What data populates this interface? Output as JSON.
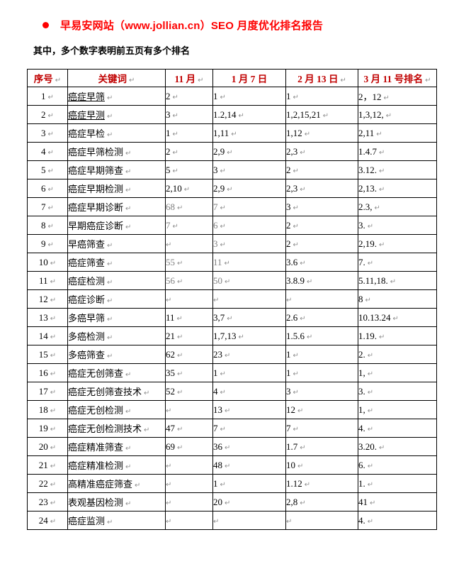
{
  "title": {
    "bullet_icon": "bullet",
    "text": "早易安网站（www.jollian.cn）SEO 月度优化排名报告"
  },
  "subtitle": "其中，多个数字表明前五页有多个排名",
  "paragraph_mark": "↵",
  "colors": {
    "title_red": "#fe0000",
    "header_red": "#c00000",
    "text_black": "#000000",
    "gray_value": "#808080",
    "mark_gray": "#8f8f8f",
    "border": "#000000",
    "background": "#ffffff"
  },
  "table": {
    "headers": [
      {
        "label": "序号",
        "mark": true
      },
      {
        "label": "关键词",
        "mark": true
      },
      {
        "label": "11 月",
        "mark": true
      },
      {
        "label": "1 月 7 日",
        "mark": false
      },
      {
        "label": "2 月 13 日",
        "mark": true
      },
      {
        "label": "3 月 11 号排名",
        "mark": true
      }
    ],
    "rows": [
      {
        "no": "1",
        "keyword": "癌症早筛",
        "underline": true,
        "values": [
          "2",
          "1",
          "1",
          "2，12"
        ],
        "gray": [
          false,
          false,
          false,
          false
        ]
      },
      {
        "no": "2",
        "keyword": "癌症早测",
        "underline": true,
        "values": [
          "3",
          "1.2,14",
          "1,2,15,21",
          "1,3,12,"
        ],
        "gray": [
          false,
          false,
          false,
          false
        ]
      },
      {
        "no": "3",
        "keyword": "癌症早检",
        "underline": false,
        "values": [
          "1",
          "1,11",
          "1,12",
          "2,11"
        ],
        "gray": [
          false,
          false,
          false,
          false
        ]
      },
      {
        "no": "4",
        "keyword": "癌症早筛检测",
        "underline": false,
        "values": [
          "2",
          "2,9",
          "2,3",
          "1.4.7"
        ],
        "gray": [
          false,
          false,
          false,
          false
        ]
      },
      {
        "no": "5",
        "keyword": "癌症早期筛查",
        "underline": false,
        "values": [
          "5",
          "3",
          "2",
          "3.12."
        ],
        "gray": [
          false,
          false,
          false,
          false
        ]
      },
      {
        "no": "6",
        "keyword": "癌症早期检测",
        "underline": false,
        "values": [
          "2,10",
          "2,9",
          "2,3",
          "2,13."
        ],
        "gray": [
          false,
          false,
          false,
          false
        ]
      },
      {
        "no": "7",
        "keyword": "癌症早期诊断",
        "underline": false,
        "values": [
          "68",
          "7",
          "3",
          "2.3,"
        ],
        "gray": [
          true,
          true,
          false,
          false
        ]
      },
      {
        "no": "8",
        "keyword": "早期癌症诊断",
        "underline": false,
        "values": [
          "7",
          "6",
          "2",
          "3."
        ],
        "gray": [
          true,
          true,
          false,
          false
        ]
      },
      {
        "no": "9",
        "keyword": "早癌筛查",
        "underline": false,
        "values": [
          "",
          "3",
          "2",
          "2,19."
        ],
        "gray": [
          false,
          true,
          false,
          false
        ]
      },
      {
        "no": "10",
        "keyword": "癌症筛查",
        "underline": false,
        "values": [
          "55",
          "11",
          "3.6",
          "7."
        ],
        "gray": [
          true,
          true,
          false,
          false
        ]
      },
      {
        "no": "11",
        "keyword": "癌症检测",
        "underline": false,
        "values": [
          "56",
          "50",
          "3.8.9",
          "5.11,18."
        ],
        "gray": [
          true,
          true,
          false,
          false
        ]
      },
      {
        "no": "12",
        "keyword": "癌症诊断",
        "underline": false,
        "values": [
          "",
          "",
          "",
          "8"
        ],
        "gray": [
          false,
          false,
          false,
          false
        ]
      },
      {
        "no": "13",
        "keyword": "多癌早筛",
        "underline": false,
        "values": [
          "11",
          "3,7",
          "2.6",
          "10.13.24"
        ],
        "gray": [
          false,
          false,
          false,
          false
        ]
      },
      {
        "no": "14",
        "keyword": "多癌检测",
        "underline": false,
        "values": [
          "21",
          "1,7,13",
          "1.5.6",
          "1.19."
        ],
        "gray": [
          false,
          false,
          false,
          false
        ]
      },
      {
        "no": "15",
        "keyword": "多癌筛查",
        "underline": false,
        "values": [
          "62",
          "23",
          "1",
          "2."
        ],
        "gray": [
          false,
          false,
          false,
          false
        ]
      },
      {
        "no": "16",
        "keyword": "癌症无创筛查",
        "underline": false,
        "values": [
          "35",
          "1",
          "1",
          "1,"
        ],
        "gray": [
          false,
          false,
          false,
          false
        ]
      },
      {
        "no": "17",
        "keyword": "癌症无创筛查技术",
        "underline": false,
        "values": [
          "52",
          "4",
          "3",
          "3."
        ],
        "gray": [
          false,
          false,
          false,
          false
        ]
      },
      {
        "no": "18",
        "keyword": "癌症无创检测",
        "underline": false,
        "values": [
          "",
          "13",
          "12",
          "1,"
        ],
        "gray": [
          false,
          false,
          false,
          false
        ]
      },
      {
        "no": "19",
        "keyword": "癌症无创检测技术",
        "underline": false,
        "values": [
          "47",
          "7",
          "7",
          "4."
        ],
        "gray": [
          false,
          false,
          false,
          false
        ]
      },
      {
        "no": "20",
        "keyword": "癌症精准筛查",
        "underline": false,
        "values": [
          "69",
          "36",
          "1.7",
          "3.20."
        ],
        "gray": [
          false,
          false,
          false,
          false
        ]
      },
      {
        "no": "21",
        "keyword": "癌症精准检测",
        "underline": false,
        "values": [
          "",
          "48",
          "10",
          "6."
        ],
        "gray": [
          false,
          false,
          false,
          false
        ]
      },
      {
        "no": "22",
        "keyword": "高精准癌症筛查",
        "underline": false,
        "values": [
          "",
          "1",
          "1.12",
          "1."
        ],
        "gray": [
          false,
          false,
          false,
          false
        ]
      },
      {
        "no": "23",
        "keyword": "表观基因检测",
        "underline": false,
        "values": [
          "",
          "20",
          "2,8",
          "41"
        ],
        "gray": [
          false,
          false,
          false,
          false
        ]
      },
      {
        "no": "24",
        "keyword": "癌症监测",
        "underline": false,
        "values": [
          "",
          "",
          "",
          "4."
        ],
        "gray": [
          false,
          false,
          false,
          false
        ]
      }
    ]
  }
}
